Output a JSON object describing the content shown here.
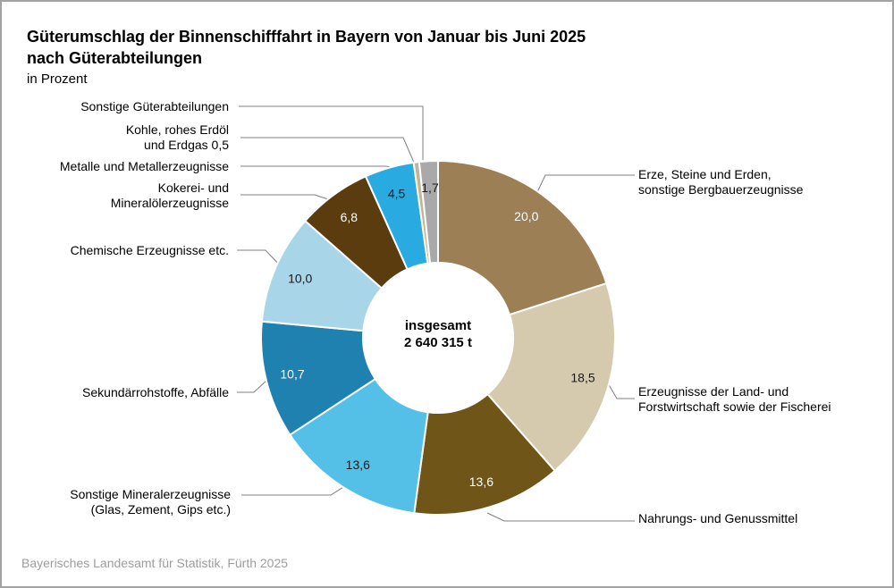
{
  "header": {
    "title_line1": "Güterumschlag der Binnenschifffahrt in Bayern von Januar bis Juni 2025",
    "title_line2": "nach Güterabteilungen",
    "subtitle": "in Prozent"
  },
  "center": {
    "line1": "insgesamt",
    "line2": "2 640 315 t"
  },
  "callouts": {
    "sonstige_gueter": "Sonstige Güterabteilungen",
    "kohle": "Kohle, rohes Erdöl\nund Erdgas 0,5",
    "metalle": "Metalle und Metallerzeugnisse",
    "kokerei": "Kokerei- und\nMineralölerzeugnisse",
    "chemische": "Chemische Erzeugnisse etc.",
    "sekundaer": "Sekundärrohstoffe, Abfälle",
    "sonst_mineral": "Sonstige Mineralerzeugnisse\n(Glas, Zement, Gips etc.)",
    "erze": "Erze, Steine und Erden,\nsonstige Bergbauerzeugnisse",
    "land_forst": "Erzeugnisse der Land- und\nForstwirtschaft sowie der Fischerei",
    "nahrungs": "Nahrungs- und Genussmittel"
  },
  "footer": {
    "source": "Bayerisches Landesamt für Statistik, Fürth 2025"
  },
  "chart_data": {
    "type": "pie",
    "style": "donut",
    "title": "Güterumschlag der Binnenschifffahrt in Bayern von Januar bis Juni 2025 nach Güterabteilungen",
    "subtitle": "in Prozent",
    "unit": "Prozent",
    "total_label": "insgesamt 2 640 315 t",
    "start_angle_deg": 0,
    "direction": "clockwise",
    "segments": [
      {
        "label": "Erze, Steine und Erden, sonstige Bergbauerzeugnisse",
        "value": 20.0,
        "display": "20,0",
        "color": "#9C7F55",
        "value_color": "#ffffff",
        "show_value": true
      },
      {
        "label": "Erzeugnisse der Land- und Forstwirtschaft sowie der Fischerei",
        "value": 18.5,
        "display": "18,5",
        "color": "#D5CAAD",
        "value_color": "#1a1a1a",
        "show_value": true
      },
      {
        "label": "Nahrungs- und Genussmittel",
        "value": 13.6,
        "display": "13,6",
        "color": "#6F5517",
        "value_color": "#ffffff",
        "show_value": true
      },
      {
        "label": "Sonstige Mineralerzeugnisse (Glas, Zement, Gips etc.)",
        "value": 13.6,
        "display": "13,6",
        "color": "#54C0E8",
        "value_color": "#1a1a1a",
        "show_value": true
      },
      {
        "label": "Sekundärrohstoffe, Abfälle",
        "value": 10.7,
        "display": "10,7",
        "color": "#1F81AF",
        "value_color": "#ffffff",
        "show_value": true
      },
      {
        "label": "Chemische Erzeugnisse etc.",
        "value": 10.0,
        "display": "10,0",
        "color": "#A8D5E8",
        "value_color": "#1a1a1a",
        "show_value": true
      },
      {
        "label": "Kokerei- und Mineralölerzeugnisse",
        "value": 6.8,
        "display": "6,8",
        "color": "#5A3C0E",
        "value_color": "#ffffff",
        "show_value": true
      },
      {
        "label": "Metalle und Metallerzeugnisse",
        "value": 4.5,
        "display": "4,5",
        "color": "#29ABE2",
        "value_color": "#1a1a1a",
        "show_value": true
      },
      {
        "label": "Kohle, rohes Erdöl und Erdgas",
        "value": 0.5,
        "display": "0,5",
        "color": "#C4B394",
        "value_color": "#1a1a1a",
        "show_value": false
      },
      {
        "label": "Sonstige Güterabteilungen",
        "value": 1.7,
        "display": "1,7",
        "color": "#A9A9A9",
        "value_color": "#1a1a1a",
        "show_value": true
      }
    ]
  }
}
